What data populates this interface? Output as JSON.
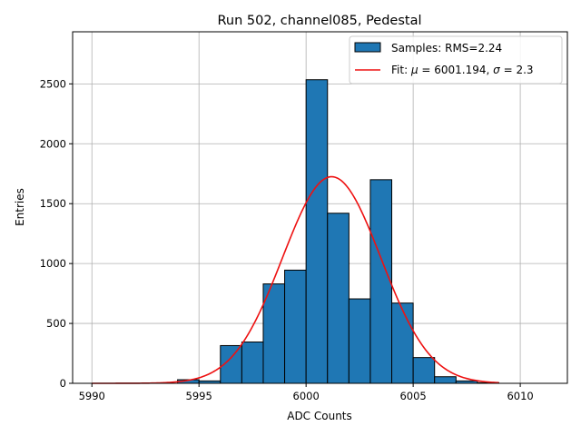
{
  "chart_data": {
    "type": "bar",
    "title": "Run 502, channel085, Pedestal",
    "xlabel": "ADC Counts",
    "ylabel": "Entries",
    "xlim": [
      5989.1,
      6012.2
    ],
    "ylim": [
      0,
      2935
    ],
    "xticks": [
      5990,
      5995,
      6000,
      6005,
      6010
    ],
    "yticks": [
      0,
      500,
      1000,
      1500,
      2000,
      2500
    ],
    "grid": true,
    "legend_position": "top-right",
    "bins": [
      {
        "left": 5994,
        "right": 5995,
        "value": 30
      },
      {
        "left": 5995,
        "right": 5996,
        "value": 20
      },
      {
        "left": 5996,
        "right": 5997,
        "value": 315
      },
      {
        "left": 5997,
        "right": 5998,
        "value": 345
      },
      {
        "left": 5998,
        "right": 5999,
        "value": 830
      },
      {
        "left": 5999,
        "right": 6000,
        "value": 945
      },
      {
        "left": 6000,
        "right": 6001,
        "value": 2535
      },
      {
        "left": 6001,
        "right": 6002,
        "value": 1420
      },
      {
        "left": 6002,
        "right": 6003,
        "value": 705
      },
      {
        "left": 6003,
        "right": 6004,
        "value": 1700
      },
      {
        "left": 6004,
        "right": 6005,
        "value": 670
      },
      {
        "left": 6005,
        "right": 6006,
        "value": 215
      },
      {
        "left": 6006,
        "right": 6007,
        "value": 55
      },
      {
        "left": 6007,
        "right": 6008,
        "value": 20
      },
      {
        "left": 6008,
        "right": 6009,
        "value": 5
      }
    ],
    "fit": {
      "mu": 6001.194,
      "sigma": 2.3,
      "amplitude": 1725,
      "x_start": 5990,
      "x_end": 6009
    },
    "series": [
      {
        "name": "Samples: RMS=2.24",
        "kind": "histogram",
        "color": "#1f77b4",
        "edge_color": "#000000"
      },
      {
        "name_prefix": "Fit: ",
        "name_mu": "μ",
        "name_mid": " = 6001.194, ",
        "name_sigma": "σ",
        "name_suffix": " = 2.3",
        "kind": "line",
        "color": "#ee1111"
      }
    ]
  }
}
